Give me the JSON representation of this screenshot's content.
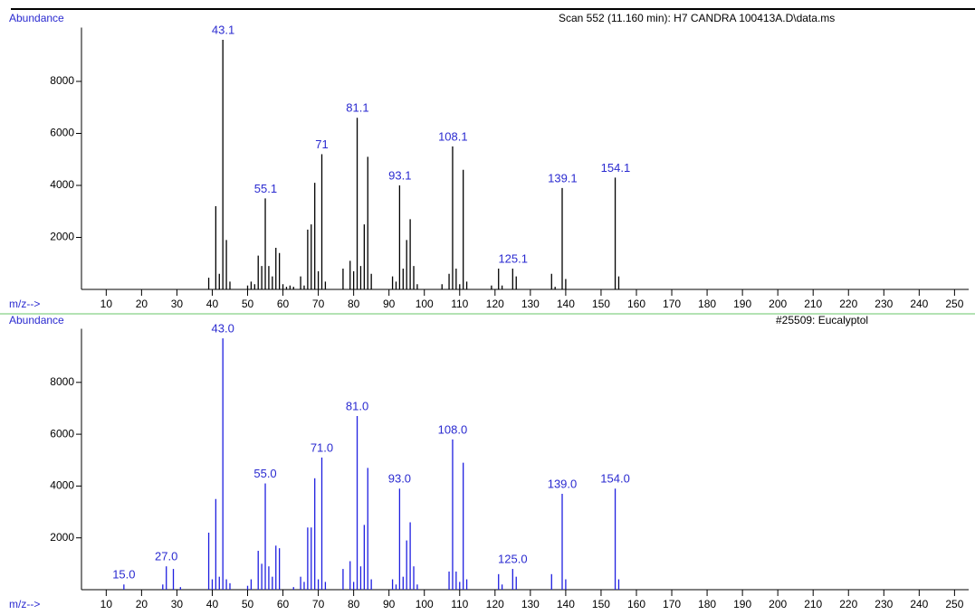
{
  "chart_data": [
    {
      "type": "stem",
      "title": "Scan 552 (11.160 min): H7 CANDRA 100413A.D\\data.ms",
      "y_label": "Abundance",
      "x_label": "m/z-->",
      "color": "#000000",
      "label_color": "#2a2ad0",
      "x": [
        39,
        41,
        42,
        43,
        44,
        45,
        50,
        51,
        52,
        53,
        54,
        55,
        56,
        57,
        58,
        59,
        60,
        61,
        62,
        63,
        65,
        66,
        67,
        68,
        69,
        70,
        71,
        72,
        77,
        79,
        80,
        81,
        82,
        83,
        84,
        85,
        91,
        92,
        93,
        94,
        95,
        96,
        97,
        98,
        105,
        107,
        108,
        109,
        110,
        111,
        112,
        119,
        121,
        122,
        125,
        126,
        136,
        137,
        139,
        140,
        154,
        155
      ],
      "values": [
        450,
        3200,
        600,
        9600,
        1900,
        300,
        150,
        300,
        200,
        1300,
        900,
        3500,
        900,
        500,
        1600,
        1400,
        200,
        100,
        150,
        100,
        500,
        150,
        2300,
        2500,
        4100,
        700,
        5200,
        300,
        800,
        1100,
        700,
        6600,
        900,
        2500,
        5100,
        600,
        500,
        300,
        4000,
        800,
        1900,
        2700,
        900,
        200,
        200,
        600,
        5500,
        800,
        200,
        4600,
        300,
        150,
        800,
        150,
        800,
        500,
        600,
        100,
        3900,
        400,
        4300,
        500
      ],
      "peak_labels": [
        43.1,
        55.1,
        71.0,
        81.1,
        93.1,
        108.1,
        125.1,
        139.1,
        154.1
      ],
      "xlim": [
        3,
        254
      ],
      "ylim": [
        0,
        10000
      ],
      "xticks": [
        10,
        20,
        30,
        40,
        50,
        60,
        70,
        80,
        90,
        100,
        110,
        120,
        130,
        140,
        150,
        160,
        170,
        180,
        190,
        200,
        210,
        220,
        230,
        240,
        250
      ],
      "yticks": [
        2000,
        4000,
        6000,
        8000
      ]
    },
    {
      "type": "stem",
      "title": "#25509: Eucalyptol",
      "y_label": "Abundance",
      "x_label": "m/z-->",
      "color": "#1f1fe0",
      "label_color": "#2a2ad0",
      "x": [
        15,
        26,
        27,
        29,
        31,
        39,
        40,
        41,
        42,
        43,
        44,
        45,
        50,
        51,
        53,
        54,
        55,
        56,
        57,
        58,
        59,
        63,
        65,
        66,
        67,
        68,
        69,
        70,
        71,
        72,
        77,
        79,
        80,
        81,
        82,
        83,
        84,
        85,
        91,
        92,
        93,
        94,
        95,
        96,
        97,
        98,
        107,
        108,
        109,
        110,
        111,
        112,
        121,
        122,
        125,
        126,
        136,
        139,
        140,
        154,
        155
      ],
      "values": [
        200,
        200,
        900,
        800,
        100,
        2200,
        400,
        3500,
        500,
        9700,
        400,
        250,
        150,
        400,
        1500,
        1000,
        4100,
        900,
        500,
        1700,
        1600,
        100,
        500,
        300,
        2400,
        2400,
        4300,
        400,
        5100,
        300,
        800,
        1100,
        300,
        6700,
        900,
        2500,
        4700,
        400,
        400,
        200,
        3900,
        500,
        1900,
        2600,
        900,
        200,
        700,
        5800,
        700,
        300,
        4900,
        400,
        600,
        200,
        800,
        500,
        600,
        3700,
        400,
        3900,
        400
      ],
      "peak_labels": [
        {
          "value": 15,
          "label": "15.0"
        },
        {
          "value": 27,
          "label": "27.0"
        },
        {
          "value": 43,
          "label": "43.0"
        },
        {
          "value": 55,
          "label": "55.0"
        },
        {
          "value": 71,
          "label": "71.0"
        },
        {
          "value": 81,
          "label": "81.0"
        },
        {
          "value": 93,
          "label": "93.0"
        },
        {
          "value": 108,
          "label": "108.0"
        },
        {
          "value": 125,
          "label": "125.0"
        },
        {
          "value": 139,
          "label": "139.0"
        },
        {
          "value": 154,
          "label": "154.0"
        }
      ],
      "xlim": [
        3,
        254
      ],
      "ylim": [
        0,
        10000
      ],
      "xticks": [
        10,
        20,
        30,
        40,
        50,
        60,
        70,
        80,
        90,
        100,
        110,
        120,
        130,
        140,
        150,
        160,
        170,
        180,
        190,
        200,
        210,
        220,
        230,
        240,
        250
      ],
      "yticks": [
        2000,
        4000,
        6000,
        8000
      ]
    }
  ]
}
